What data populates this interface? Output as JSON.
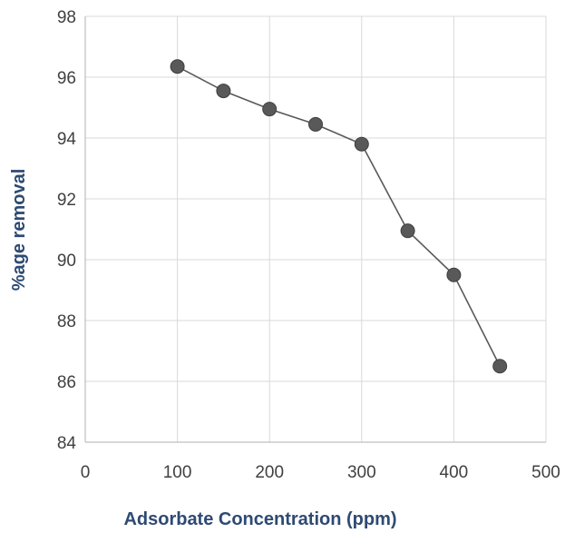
{
  "chart_data": {
    "type": "line",
    "title": "",
    "xlabel": "Adsorbate Concentration (ppm)",
    "ylabel": "%age removal",
    "xlim": [
      0,
      500
    ],
    "ylim": [
      84,
      98
    ],
    "xticks": [
      0,
      100,
      200,
      300,
      400,
      500
    ],
    "yticks": [
      84,
      86,
      88,
      90,
      92,
      94,
      96,
      98
    ],
    "grid": true,
    "legend": "none",
    "series": [
      {
        "x": [
          100,
          150,
          200,
          250,
          300,
          350,
          400,
          450
        ],
        "y": [
          96.35,
          95.55,
          94.95,
          94.45,
          93.8,
          90.95,
          89.5,
          86.5
        ]
      }
    ],
    "colors": {
      "line": "#595959",
      "marker": "#595959",
      "grid": "#d9d9d9",
      "axis_title": "#2e4a73",
      "tick_label": "#404040"
    }
  }
}
